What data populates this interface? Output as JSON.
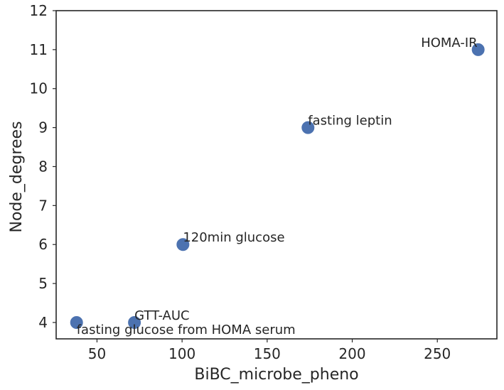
{
  "chart_data": {
    "type": "scatter",
    "xlabel": "BiBC_microbe_pheno",
    "ylabel": "Node_degrees",
    "xlim": [
      26,
      285
    ],
    "ylim": [
      3.58,
      12.0
    ],
    "xticks": [
      50,
      100,
      150,
      200,
      250
    ],
    "yticks": [
      4,
      5,
      6,
      7,
      8,
      9,
      10,
      11,
      12
    ],
    "grid": false,
    "marker_color": "#4c72b0",
    "points": [
      {
        "label": "fasting glucose from HOMA serum",
        "x": 38,
        "y": 4
      },
      {
        "label": "GTT-AUC",
        "x": 72,
        "y": 4
      },
      {
        "label": "120min glucose",
        "x": 100.5,
        "y": 6
      },
      {
        "label": "fasting leptin",
        "x": 174,
        "y": 9
      },
      {
        "label": "HOMA-IR",
        "x": 274,
        "y": 11
      }
    ]
  }
}
